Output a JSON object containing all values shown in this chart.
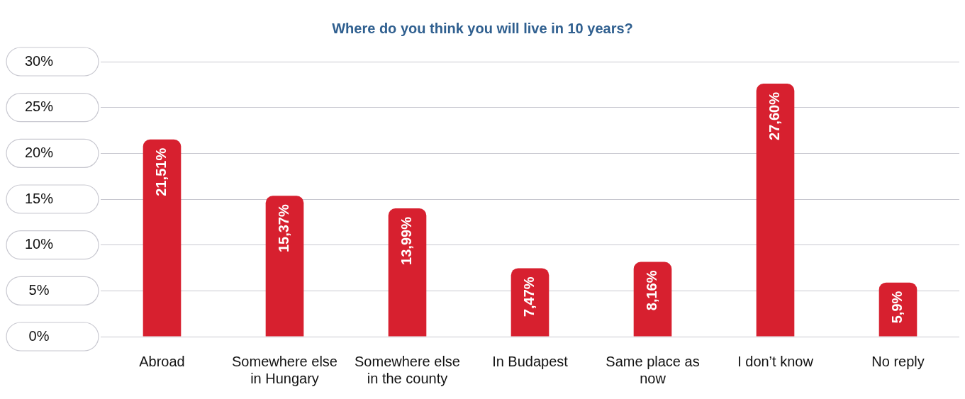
{
  "chart_data": {
    "type": "bar",
    "title": "Where do you think you will live in 10 years?",
    "categories": [
      "Abroad",
      "Somewhere else in Hungary",
      "Somewhere else in the county",
      "In Budapest",
      "Same place as now",
      "I don’t know",
      "No reply"
    ],
    "values": [
      21.51,
      15.37,
      13.99,
      7.47,
      8.16,
      27.6,
      5.9
    ],
    "value_labels": [
      "21,51%",
      "15,37%",
      "13,99%",
      "7,47%",
      "8,16%",
      "27,60%",
      "5,9%"
    ],
    "color": "#d7202f",
    "ylim": [
      0,
      30
    ],
    "yticks": [
      {
        "value": 0,
        "label": "0%"
      },
      {
        "value": 5,
        "label": "5%"
      },
      {
        "value": 10,
        "label": "10%"
      },
      {
        "value": 15,
        "label": "15%"
      },
      {
        "value": 20,
        "label": "20%"
      },
      {
        "value": 25,
        "label": "25%"
      },
      {
        "value": 30,
        "label": "30%"
      }
    ],
    "grid": "y",
    "legend": false
  }
}
